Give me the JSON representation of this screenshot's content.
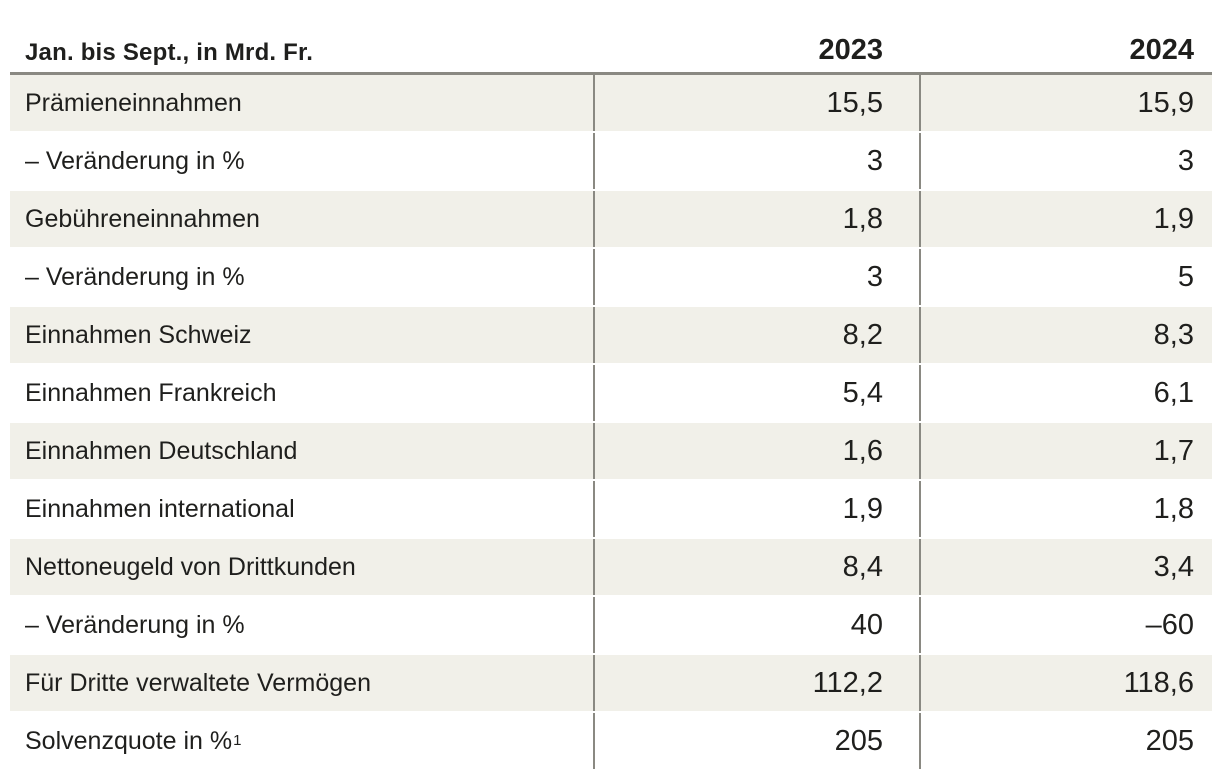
{
  "colors": {
    "row_shade": "#f1f0e9",
    "row_plain": "#ffffff",
    "rule_gray": "#8a8982",
    "text": "#1f1f1d"
  },
  "table": {
    "header": {
      "label": "Jan. bis Sept., in Mrd. Fr.",
      "col2023": "2023",
      "col2024": "2024"
    },
    "rows": [
      {
        "label": "Prämieneinnahmen",
        "sup": "",
        "v2023": "15,5",
        "v2024": "15,9"
      },
      {
        "label": "– Veränderung in %",
        "sup": "",
        "v2023": "3",
        "v2024": "3"
      },
      {
        "label": "Gebühreneinnahmen",
        "sup": "",
        "v2023": "1,8",
        "v2024": "1,9"
      },
      {
        "label": "– Veränderung in %",
        "sup": "",
        "v2023": "3",
        "v2024": "5"
      },
      {
        "label": "Einnahmen Schweiz",
        "sup": "",
        "v2023": "8,2",
        "v2024": "8,3"
      },
      {
        "label": "Einnahmen Frankreich",
        "sup": "",
        "v2023": "5,4",
        "v2024": "6,1"
      },
      {
        "label": "Einnahmen Deutschland",
        "sup": "",
        "v2023": "1,6",
        "v2024": "1,7"
      },
      {
        "label": "Einnahmen international",
        "sup": "",
        "v2023": "1,9",
        "v2024": "1,8"
      },
      {
        "label": "Nettoneugeld von Drittkunden",
        "sup": "",
        "v2023": "8,4",
        "v2024": "3,4"
      },
      {
        "label": "– Veränderung in %",
        "sup": "",
        "v2023": "40",
        "v2024": "–60"
      },
      {
        "label": "Für Dritte verwaltete Vermögen",
        "sup": "",
        "v2023": "112,2",
        "v2024": "118,6"
      },
      {
        "label": "Solvenzquote in %",
        "sup": "1",
        "v2023": "205",
        "v2024": "205"
      }
    ]
  },
  "chart_data": {
    "type": "table",
    "title": "Jan. bis Sept., in Mrd. Fr.",
    "columns": [
      "2023",
      "2024"
    ],
    "categories": [
      "Prämieneinnahmen",
      "– Veränderung in %",
      "Gebühreneinnahmen",
      "– Veränderung in %",
      "Einnahmen Schweiz",
      "Einnahmen Frankreich",
      "Einnahmen Deutschland",
      "Einnahmen international",
      "Nettoneugeld von Drittkunden",
      "– Veränderung in %",
      "Für Dritte verwaltete Vermögen",
      "Solvenzquote in %¹"
    ],
    "series": [
      {
        "name": "2023",
        "values": [
          15.5,
          3,
          1.8,
          3,
          8.2,
          5.4,
          1.6,
          1.9,
          8.4,
          40,
          112.2,
          205
        ]
      },
      {
        "name": "2024",
        "values": [
          15.9,
          3,
          1.9,
          5,
          8.3,
          6.1,
          1.7,
          1.8,
          3.4,
          -60,
          118.6,
          205
        ]
      }
    ],
    "layout": {
      "shaded_rows": "odd rows beige #f1f0e9",
      "value_alignment": "right",
      "column_dividers": true
    }
  }
}
